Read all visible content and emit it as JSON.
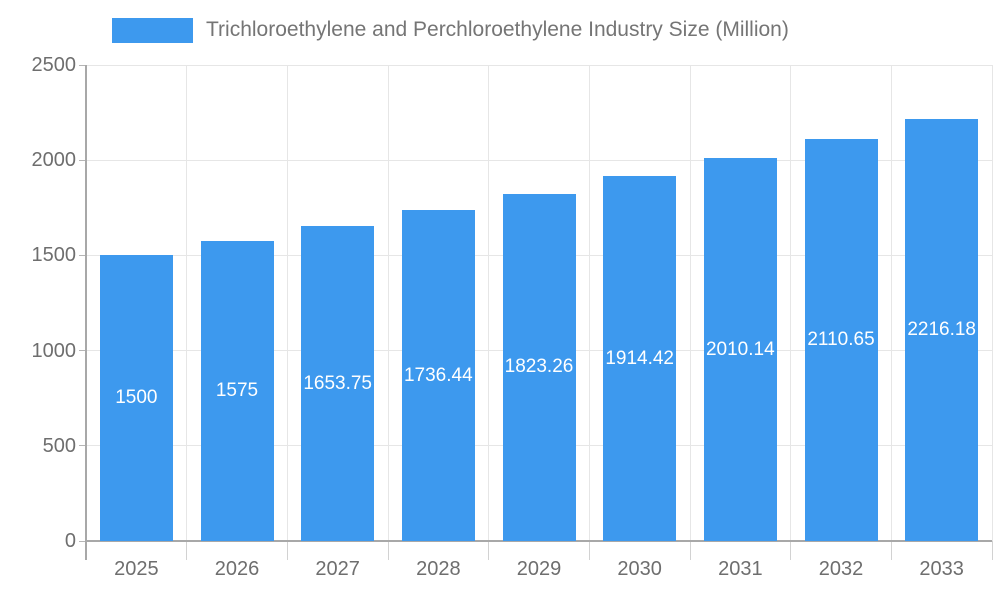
{
  "legend": {
    "items": [
      {
        "label": "Trichloroethylene and Perchloroethylene Industry Size (Million)",
        "color": "#3D99EE"
      }
    ]
  },
  "chart_data": {
    "type": "bar",
    "title": "Trichloroethylene and Perchloroethylene Industry Size (Million)",
    "categories": [
      "2025",
      "2026",
      "2027",
      "2028",
      "2029",
      "2030",
      "2031",
      "2032",
      "2033"
    ],
    "series": [
      {
        "name": "Trichloroethylene and Perchloroethylene Industry Size (Million)",
        "values": [
          1500,
          1575,
          1653.75,
          1736.44,
          1823.26,
          1914.42,
          2010.14,
          2110.65,
          2216.18
        ],
        "labels": [
          "1500",
          "1575",
          "1653.75",
          "1736.44",
          "1823.26",
          "1914.42",
          "2010.14",
          "2110.65",
          "2216.18"
        ],
        "color": "#3D99EE"
      }
    ],
    "xlabel": "",
    "ylabel": "",
    "ylim": [
      0,
      2500
    ],
    "yticks": [
      0,
      500,
      1000,
      1500,
      2000,
      2500
    ],
    "grid": true,
    "legend_position": "top",
    "value_label_color": "#FFFFFF",
    "axis_text_color": "#6E6E6E",
    "gridline_color": "#E6E6E6",
    "axis_line_color": "#A8A8A8",
    "bar_color": "#3D99EE"
  }
}
